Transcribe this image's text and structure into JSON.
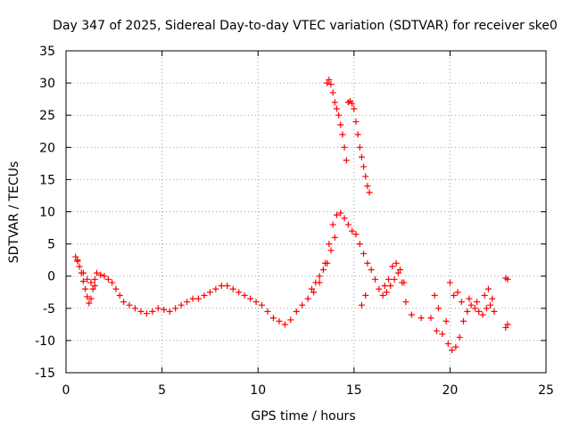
{
  "chart_data": {
    "type": "scatter",
    "title": "Day 347 of 2025, Sidereal Day-to-day VTEC variation (SDTVAR) for receiver ske0",
    "xlabel": "GPS time / hours",
    "ylabel": "SDTVAR / TECUs",
    "xlim": [
      0,
      25
    ],
    "ylim": [
      -15,
      35
    ],
    "xticks": [
      0,
      5,
      10,
      15,
      20,
      25
    ],
    "yticks": [
      -15,
      -10,
      -5,
      0,
      5,
      10,
      15,
      20,
      25,
      30,
      35
    ],
    "grid": true,
    "marker": "+",
    "marker_color": "#ff0000",
    "series": [
      {
        "name": "SDTVAR",
        "x": [
          0.5,
          0.6,
          0.7,
          0.8,
          0.9,
          1.0,
          1.1,
          1.2,
          1.3,
          1.4,
          1.5,
          1.6,
          1.8,
          2.0,
          2.2,
          2.4,
          2.6,
          2.8,
          3.0,
          3.3,
          3.6,
          3.9,
          4.2,
          4.5,
          4.8,
          5.1,
          5.4,
          5.7,
          6.0,
          6.3,
          6.6,
          6.9,
          7.2,
          7.5,
          7.8,
          8.1,
          8.4,
          8.7,
          9.0,
          9.3,
          9.6,
          9.9,
          10.2,
          10.5,
          10.8,
          11.1,
          11.4,
          11.7,
          12.0,
          12.3,
          12.6,
          12.9,
          13.2,
          13.5,
          13.7,
          13.9,
          14.1,
          14.3,
          14.5,
          14.7,
          14.9,
          15.1,
          15.3,
          15.5,
          15.7,
          15.9,
          16.1,
          16.3,
          16.5,
          16.7,
          16.9,
          17.1,
          17.3,
          17.5,
          17.7,
          18.0,
          18.5,
          19.0,
          19.3,
          19.6,
          19.9,
          20.1,
          20.3,
          20.5,
          20.7,
          20.9,
          21.1,
          21.3,
          21.5,
          21.7,
          21.9,
          22.1,
          22.3,
          22.9,
          23.0,
          0.6,
          0.9,
          1.1,
          1.3,
          1.5,
          12.8,
          13.0,
          13.2,
          13.4,
          13.6,
          13.8,
          14.0,
          13.6,
          13.7,
          13.8,
          13.9,
          14.0,
          14.1,
          14.2,
          14.3,
          14.4,
          14.5,
          14.6,
          14.7,
          14.8,
          14.9,
          15.0,
          15.1,
          15.2,
          15.3,
          15.4,
          15.5,
          15.6,
          15.7,
          15.8,
          15.4,
          15.6,
          16.6,
          16.8,
          17.0,
          17.2,
          17.4,
          17.6,
          19.2,
          19.4,
          19.8,
          20.0,
          20.2,
          20.4,
          20.6,
          21.0,
          21.4,
          21.8,
          22.0,
          22.2,
          22.9,
          23.0
        ],
        "y": [
          3.0,
          2.3,
          1.5,
          0.5,
          -0.8,
          -2.0,
          -3.2,
          -4.2,
          -3.5,
          -2.0,
          -0.5,
          0.5,
          0.2,
          0.0,
          -0.5,
          -1.0,
          -2.0,
          -3.0,
          -4.0,
          -4.5,
          -5.0,
          -5.5,
          -5.8,
          -5.5,
          -5.0,
          -5.2,
          -5.5,
          -5.0,
          -4.5,
          -4.0,
          -3.5,
          -3.5,
          -3.0,
          -2.5,
          -2.0,
          -1.5,
          -1.5,
          -2.0,
          -2.5,
          -3.0,
          -3.5,
          -4.0,
          -4.5,
          -5.5,
          -6.5,
          -7.0,
          -7.5,
          -6.8,
          -5.5,
          -4.5,
          -3.5,
          -2.5,
          -1.0,
          2.0,
          5.0,
          8.0,
          9.5,
          9.8,
          9.0,
          8.0,
          7.0,
          6.5,
          5.0,
          3.5,
          2.0,
          1.0,
          -0.5,
          -2.0,
          -3.0,
          -2.5,
          -1.5,
          -0.5,
          0.5,
          -1.0,
          -4.0,
          -6.0,
          -6.5,
          -6.5,
          -8.5,
          -9.0,
          -10.5,
          -11.5,
          -11.0,
          -9.5,
          -7.0,
          -5.5,
          -4.5,
          -5.0,
          -5.5,
          -6.0,
          -5.0,
          -4.5,
          -5.5,
          -8.0,
          -7.5,
          2.5,
          0.5,
          -0.5,
          -1.0,
          -1.5,
          -2.0,
          -1.0,
          0.0,
          1.0,
          2.0,
          4.0,
          6.0,
          30.0,
          30.5,
          29.8,
          28.5,
          27.0,
          26.0,
          25.0,
          23.5,
          22.0,
          20.0,
          18.0,
          27.0,
          27.2,
          26.8,
          26.0,
          24.0,
          22.0,
          20.0,
          18.5,
          17.0,
          15.5,
          14.0,
          13.0,
          -4.5,
          -3.0,
          -1.5,
          -0.5,
          1.5,
          2.0,
          1.0,
          -1.0,
          -3.0,
          -5.0,
          -7.0,
          -1.0,
          -3.0,
          -2.5,
          -4.0,
          -3.5,
          -4.0,
          -3.0,
          -2.0,
          -3.5,
          -0.3,
          -0.5
        ]
      }
    ]
  }
}
